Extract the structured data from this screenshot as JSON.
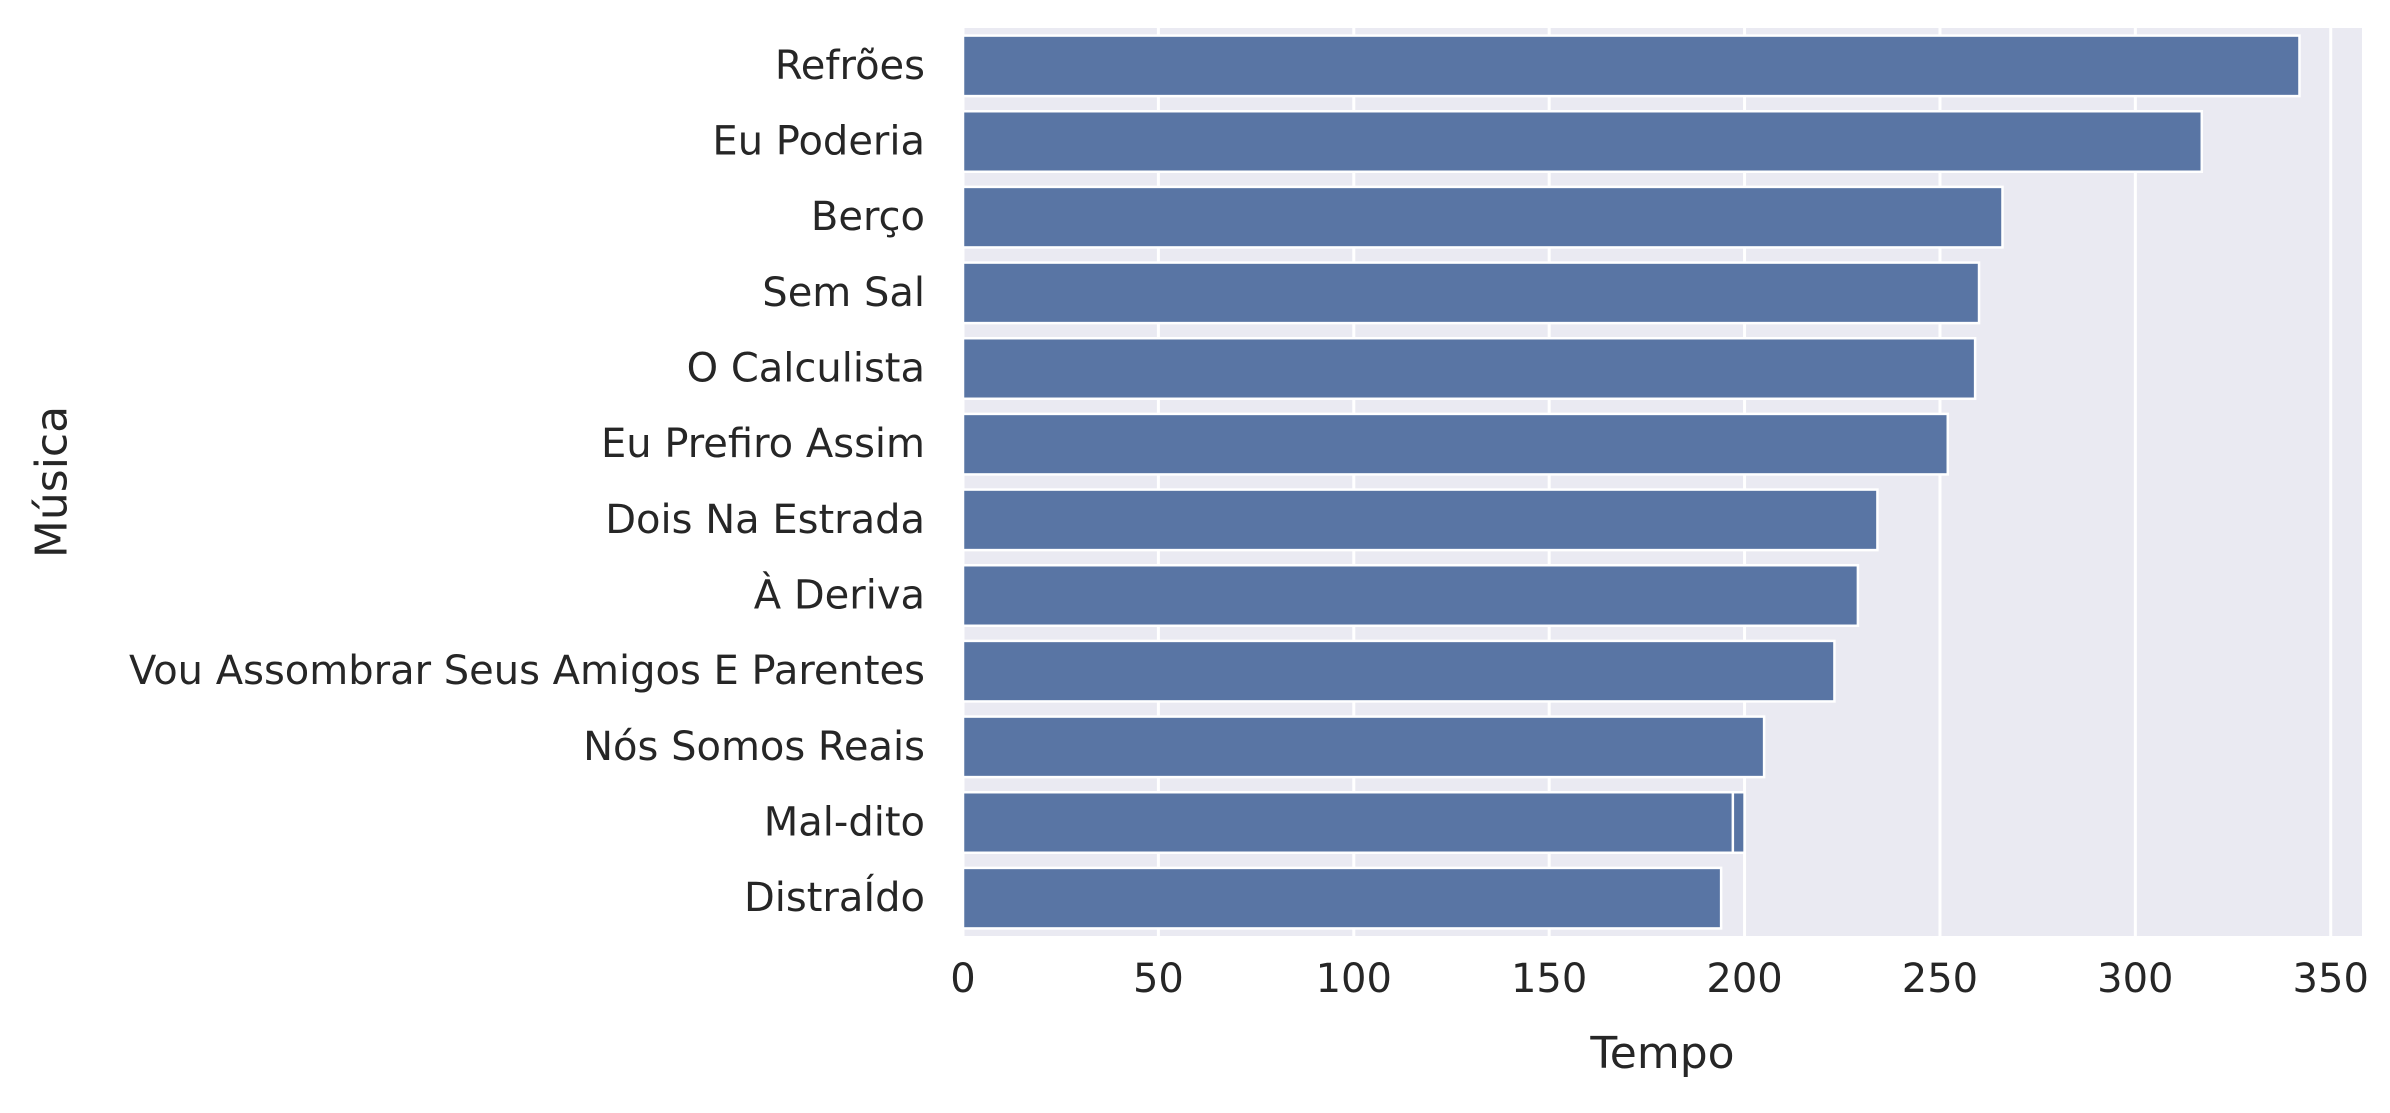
{
  "chart_data": {
    "type": "bar",
    "orientation": "horizontal",
    "xlabel": "Tempo",
    "ylabel": "Música",
    "xlim": [
      0,
      358
    ],
    "xticks": [
      0,
      50,
      100,
      150,
      200,
      250,
      300,
      350
    ],
    "grid": true,
    "legend": "none",
    "colors": {
      "bar": "#5975a4",
      "plot_background": "#eaeaf2",
      "grid": "#ffffff",
      "text": "#262626"
    },
    "categories": [
      "Refrões",
      "Eu Poderia",
      "Berço",
      "Sem Sal",
      "O Calculista",
      "Eu Prefiro Assim",
      "Dois Na Estrada",
      "À Deriva",
      "Vou Assombrar Seus Amigos E Parentes",
      "Nós Somos Reais",
      "Mal-dito",
      "DistraÍdo"
    ],
    "values": [
      342,
      317,
      266,
      260,
      259,
      252,
      234,
      229,
      223,
      205,
      200,
      194
    ],
    "overlay_bars": [
      {
        "category": "Mal-dito",
        "value": 197
      }
    ]
  }
}
